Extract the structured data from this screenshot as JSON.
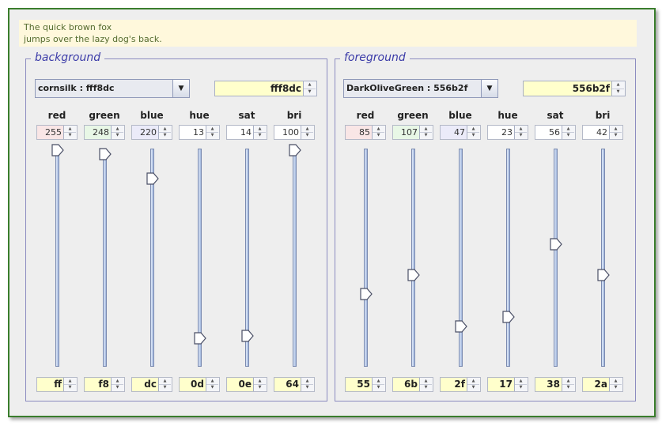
{
  "preview": {
    "line1": "The quick brown fox",
    "line2": "jumps over the lazy dog's back."
  },
  "colors": {
    "background_swatch": "#fff8dc",
    "foreground_swatch": "#556b2f",
    "hex_field_bg": "#ffffcc",
    "red_tint": "#f9e6e6",
    "green_tint": "#e8f7e6",
    "blue_tint": "#ebebf9"
  },
  "icons": {
    "combo_arrow": "chevron-down-icon",
    "spin_up": "spin-up-icon",
    "spin_down": "spin-down-icon",
    "slider_thumb": "slider-thumb-icon"
  },
  "panels": [
    {
      "id": "background",
      "title": "background",
      "combo_label": "cornsilk : fff8dc",
      "hex": "fff8dc",
      "channels": [
        {
          "label": "red",
          "value": "255",
          "level": 1.0,
          "hex": "ff",
          "tint": "red"
        },
        {
          "label": "green",
          "value": "248",
          "level": 0.973,
          "hex": "f8",
          "tint": "green"
        },
        {
          "label": "blue",
          "value": "220",
          "level": 0.863,
          "hex": "dc",
          "tint": "blue"
        },
        {
          "label": "hue",
          "value": "13",
          "level": 0.13,
          "hex": "0d",
          "tint": "none"
        },
        {
          "label": "sat",
          "value": "14",
          "level": 0.14,
          "hex": "0e",
          "tint": "none"
        },
        {
          "label": "bri",
          "value": "100",
          "level": 1.0,
          "hex": "64",
          "tint": "none"
        }
      ]
    },
    {
      "id": "foreground",
      "title": "foreground",
      "combo_label": "DarkOliveGreen : 556b2f",
      "hex": "556b2f",
      "channels": [
        {
          "label": "red",
          "value": "85",
          "level": 0.333,
          "hex": "55",
          "tint": "red"
        },
        {
          "label": "green",
          "value": "107",
          "level": 0.42,
          "hex": "6b",
          "tint": "green"
        },
        {
          "label": "blue",
          "value": "47",
          "level": 0.184,
          "hex": "2f",
          "tint": "blue"
        },
        {
          "label": "hue",
          "value": "23",
          "level": 0.23,
          "hex": "17",
          "tint": "none"
        },
        {
          "label": "sat",
          "value": "56",
          "level": 0.56,
          "hex": "38",
          "tint": "none"
        },
        {
          "label": "bri",
          "value": "42",
          "level": 0.42,
          "hex": "2a",
          "tint": "none"
        }
      ]
    }
  ]
}
